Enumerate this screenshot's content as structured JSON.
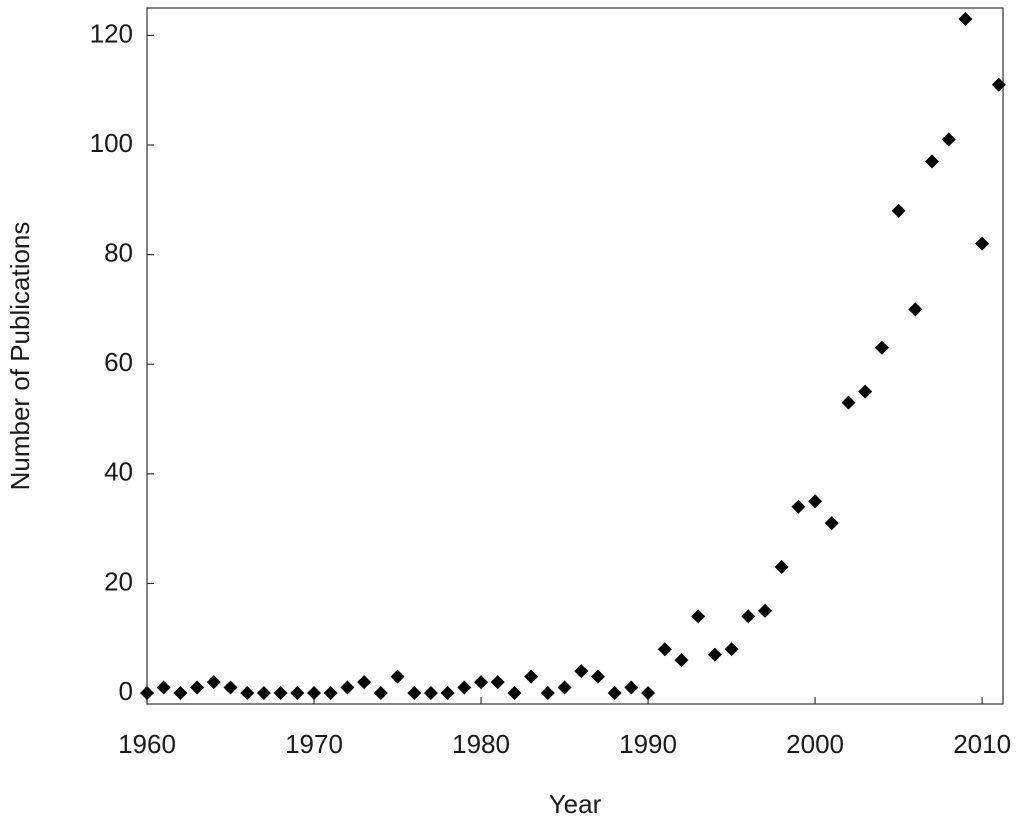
{
  "chart_data": {
    "type": "scatter",
    "x_label": "Year",
    "y_label": "Number of Publications",
    "x": [
      1960,
      1961,
      1962,
      1963,
      1964,
      1965,
      1966,
      1967,
      1968,
      1969,
      1970,
      1971,
      1972,
      1973,
      1974,
      1975,
      1976,
      1977,
      1978,
      1979,
      1980,
      1981,
      1982,
      1983,
      1984,
      1985,
      1986,
      1987,
      1988,
      1989,
      1990,
      1991,
      1992,
      1993,
      1994,
      1995,
      1996,
      1997,
      1998,
      1999,
      2000,
      2001,
      2002,
      2003,
      2004,
      2005,
      2006,
      2007,
      2008,
      2009,
      2010,
      2011
    ],
    "values": [
      0,
      1,
      0,
      1,
      2,
      1,
      0,
      0,
      0,
      0,
      0,
      0,
      1,
      2,
      0,
      3,
      0,
      0,
      0,
      1,
      2,
      2,
      0,
      3,
      0,
      1,
      4,
      3,
      0,
      1,
      0,
      8,
      6,
      14,
      7,
      8,
      14,
      15,
      23,
      34,
      35,
      31,
      53,
      55,
      63,
      88,
      70,
      97,
      101,
      123,
      82,
      111
    ],
    "color": "#000000",
    "marker": "diamond",
    "xlim": [
      1960,
      2011.25
    ],
    "xticks": [
      1960,
      1970,
      1980,
      1990,
      2000,
      2010
    ],
    "ylim": [
      -2,
      125
    ],
    "yticks": [
      0,
      20,
      40,
      60,
      80,
      100,
      120
    ],
    "grid": false
  }
}
